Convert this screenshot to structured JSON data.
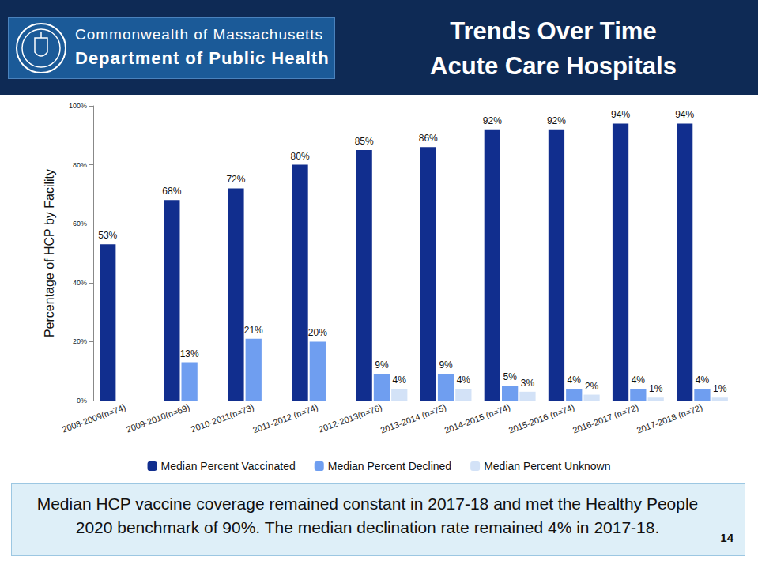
{
  "header": {
    "org": [
      "Commonwealth of Massachusetts",
      "Department of Public Health"
    ],
    "title": "Trends Over Time",
    "subtitle": "Acute Care Hospitals"
  },
  "footer": {
    "note": "Median HCP vaccine coverage remained constant in 2017-18 and met the Healthy People 2020 benchmark of 90%.  The median declination rate remained 4% in 2017-18.",
    "page": "14"
  },
  "chart_data": {
    "type": "bar",
    "title": "Trends Over Time Acute Care Hospitals",
    "y_label": "Percentage of HCP by Facility",
    "categories": [
      "2008-2009(n=74)",
      "2009-2010(n=69)",
      "2010-2011(n=73)",
      "2011-2012 (n=74)",
      "2012-2013(n=76)",
      "2013-2014 (n=75)",
      "2014-2015 (n=74)",
      "2015-2016 (n=74)",
      "2016-2017 (n=72)",
      "2017-2018 (n=72)"
    ],
    "series": [
      {
        "name": "Median Percent Vaccinated",
        "color": "#112e8e",
        "values": [
          53,
          68,
          72,
          80,
          85,
          86,
          92,
          92,
          94,
          94
        ],
        "value_labels": [
          "53%",
          "68%",
          "72%",
          "80%",
          "85%",
          "86%",
          "92%",
          "92%",
          "94%",
          "94%"
        ]
      },
      {
        "name": "Median Percent Declined",
        "color": "#6f9ef0",
        "values": [
          null,
          13,
          21,
          20,
          9,
          9,
          5,
          4,
          4,
          4
        ],
        "value_labels": [
          null,
          "13%",
          "21%",
          "20%",
          "9%",
          "9%",
          "5%",
          "4%",
          "4%",
          "4%"
        ]
      },
      {
        "name": "Median Percent Unknown",
        "color": "#d3e2f7",
        "values": [
          null,
          null,
          null,
          null,
          4,
          4,
          3,
          2,
          1,
          1
        ],
        "value_labels": [
          null,
          null,
          null,
          null,
          "4%",
          "4%",
          "3%",
          "2%",
          "1%",
          "1%"
        ]
      }
    ],
    "ylim": [
      0,
      100
    ],
    "yticks": [
      {
        "value": 0,
        "label": "0%"
      },
      {
        "value": 20,
        "label": "20%"
      },
      {
        "value": 40,
        "label": "40%"
      },
      {
        "value": 60,
        "label": "60%"
      },
      {
        "value": 80,
        "label": "80%"
      },
      {
        "value": 100,
        "label": "100%"
      }
    ],
    "grid": false,
    "legend": "bottom",
    "data_labels": true
  }
}
